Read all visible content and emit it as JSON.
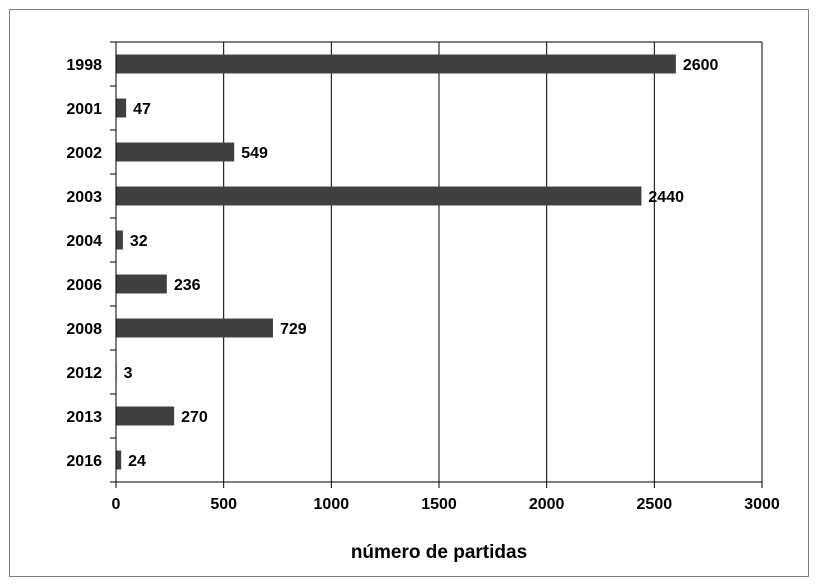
{
  "chart_data": {
    "type": "bar",
    "orientation": "horizontal",
    "categories": [
      "1998",
      "2001",
      "2002",
      "2003",
      "2004",
      "2006",
      "2008",
      "2012",
      "2013",
      "2016"
    ],
    "values": [
      2600,
      47,
      549,
      2440,
      32,
      236,
      729,
      3,
      270,
      24
    ],
    "data_labels": [
      "2600",
      "47",
      "549",
      "2440",
      "32",
      "236",
      "729",
      "3",
      "270",
      "24"
    ],
    "xlabel": "número de partidas",
    "ylabel": "",
    "title": "",
    "xlim": [
      0,
      3000
    ],
    "x_ticks": [
      "0",
      "500",
      "1000",
      "1500",
      "2000",
      "2500",
      "3000"
    ],
    "grid": "vertical major gridlines",
    "legend": "none",
    "bar_color": "#404040"
  }
}
